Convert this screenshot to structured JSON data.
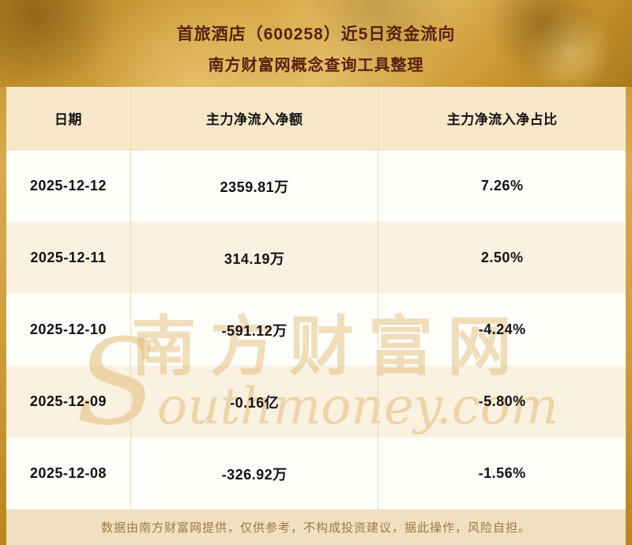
{
  "header": {
    "title": "首旅酒店（600258）近5日资金流向",
    "subtitle": "南方财富网概念查询工具整理"
  },
  "table": {
    "columns": [
      "日期",
      "主力净流入净额",
      "主力净流入净占比"
    ],
    "rows": [
      {
        "date": "2025-12-12",
        "amount": "2359.81万",
        "ratio": "7.26%"
      },
      {
        "date": "2025-12-11",
        "amount": "314.19万",
        "ratio": "2.50%"
      },
      {
        "date": "2025-12-10",
        "amount": "-591.12万",
        "ratio": "-4.24%"
      },
      {
        "date": "2025-12-09",
        "amount": "-0.16亿",
        "ratio": "-5.80%"
      },
      {
        "date": "2025-12-08",
        "amount": "-326.92万",
        "ratio": "-1.56%"
      }
    ]
  },
  "chart_data": {
    "type": "table",
    "title": "首旅酒店（600258）近5日资金流向",
    "subtitle": "南方财富网概念查询工具整理",
    "columns": [
      "日期",
      "主力净流入净额",
      "主力净流入净占比"
    ],
    "rows": [
      [
        "2025-12-12",
        "2359.81万",
        "7.26%"
      ],
      [
        "2025-12-11",
        "314.19万",
        "2.50%"
      ],
      [
        "2025-12-10",
        "-591.12万",
        "-4.24%"
      ],
      [
        "2025-12-09",
        "-0.16亿",
        "-5.80%"
      ],
      [
        "2025-12-08",
        "-326.92万",
        "-1.56%"
      ]
    ],
    "net_inflow_pct_values": [
      7.26,
      2.5,
      -4.24,
      -5.8,
      -1.56
    ]
  },
  "watermark": {
    "cn": "南方财富网",
    "en": "Southmoney.com"
  },
  "footer": {
    "disclaimer": "数据由南方财富网提供，仅供参考，不构成投资建议，据此操作，风险自担。"
  },
  "colors": {
    "banner_gold": "#c9952f",
    "title_text": "#5a200f",
    "header_bg": "#f8e8ca",
    "row_alt_bg": "#faf1e1",
    "divider": "#eddab6",
    "footer_bg": "#f0dfc0",
    "footer_text": "#9f7a43",
    "watermark": "#e2bc78"
  }
}
